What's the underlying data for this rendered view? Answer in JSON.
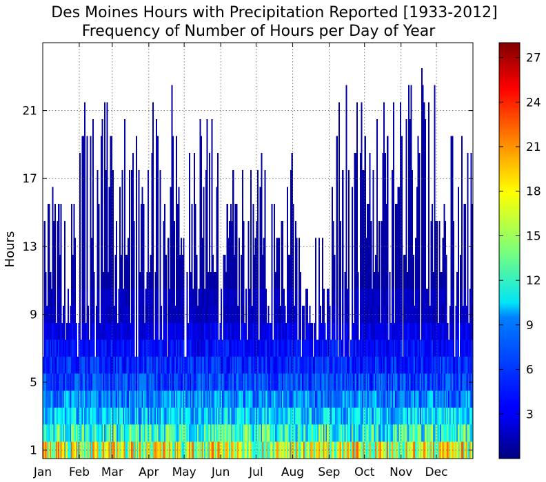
{
  "chart_data": {
    "type": "heatmap",
    "title": "Des Moines Hours with Precipitation Reported [1933-2012]",
    "subtitle": "Frequency of Number of Hours per Day of Year",
    "xlabel": "",
    "ylabel": "Hours",
    "x_tick_labels": [
      "Jan",
      "Feb",
      "Mar",
      "Apr",
      "May",
      "Jun",
      "Jul",
      "Aug",
      "Sep",
      "Oct",
      "Nov",
      "Dec"
    ],
    "x_tick_days": [
      1,
      32,
      60,
      91,
      121,
      152,
      182,
      213,
      244,
      274,
      305,
      335
    ],
    "xlim": [
      1,
      366
    ],
    "y_ticks": [
      1,
      5,
      9,
      13,
      17,
      21
    ],
    "ylim": [
      0.5,
      25
    ],
    "grid": true,
    "colormap": "jet",
    "colorbar": {
      "ticks": [
        3,
        6,
        9,
        12,
        15,
        18,
        21,
        24,
        27
      ],
      "range": [
        0,
        28
      ]
    },
    "typical_frequency_by_hours": [
      {
        "hours": 1,
        "frequency": 18
      },
      {
        "hours": 2,
        "frequency": 13
      },
      {
        "hours": 3,
        "frequency": 10
      },
      {
        "hours": 4,
        "frequency": 8
      },
      {
        "hours": 5,
        "frequency": 6
      },
      {
        "hours": 6,
        "frequency": 5
      },
      {
        "hours": 7,
        "frequency": 4
      },
      {
        "hours": 8,
        "frequency": 3
      },
      {
        "hours": 9,
        "frequency": 2
      },
      {
        "hours": 10,
        "frequency": 2
      },
      {
        "hours": 11,
        "frequency": 1
      }
    ],
    "max_hours_by_month": [
      {
        "month": "Jan",
        "max_hours": 16
      },
      {
        "month": "Feb",
        "max_hours": 22
      },
      {
        "month": "Mar",
        "max_hours": 21
      },
      {
        "month": "Apr",
        "max_hours": 22
      },
      {
        "month": "May",
        "max_hours": 21
      },
      {
        "month": "Jun",
        "max_hours": 18
      },
      {
        "month": "Jul",
        "max_hours": 18
      },
      {
        "month": "Aug",
        "max_hours": 14
      },
      {
        "month": "Sep",
        "max_hours": 22
      },
      {
        "month": "Oct",
        "max_hours": 22
      },
      {
        "month": "Nov",
        "max_hours": 23
      },
      {
        "month": "Dec",
        "max_hours": 19
      }
    ]
  }
}
